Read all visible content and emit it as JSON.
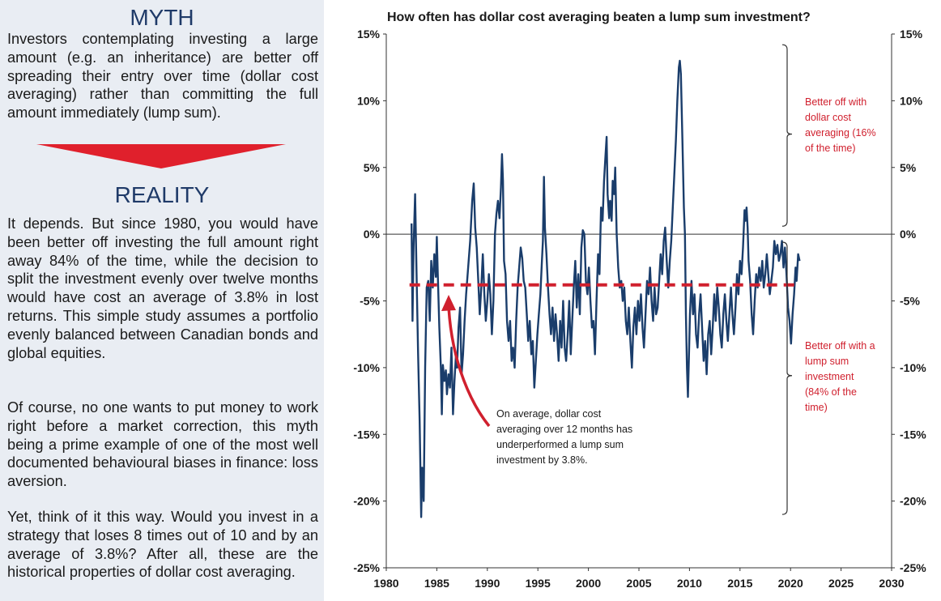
{
  "left": {
    "myth_title": "MYTH",
    "myth_text": "Investors contemplating investing a large amount (e.g. an inheritance) are better off spreading their entry over time (dollar cost averaging) rather than committing the full amount immediately (lump sum).",
    "reality_title": "REALITY",
    "reality_p1": "It depends. But since 1980, you would have been better off investing the full amount right away 84% of the time, while the decision to split the investment evenly over twelve months would have cost an average of 3.8% in lost returns. This simple study assumes a portfolio evenly balanced between Canadian bonds and global equities.",
    "reality_p2": "Of course, no one wants to put money to work right before a market correction, this myth being a prime example of one of the most well documented behavioural biases in finance: loss aversion.",
    "reality_p3": "Yet, think of it this way. Would you invest in a strategy that loses 8 times out of 10 and by an average of 3.8%? After all, these are the historical properties of dollar cost averaging.",
    "colors": {
      "heading": "#1f3a68",
      "arrow": "#e0202c",
      "panel_bg": "#e9edf3"
    }
  },
  "chart_data": {
    "type": "line",
    "title": "How often has dollar cost averaging beaten a lump sum investment?",
    "xlim": [
      1980,
      2030
    ],
    "ylim": [
      -25,
      15
    ],
    "x_ticks": [
      1980,
      1985,
      1990,
      1995,
      2000,
      2005,
      2010,
      2015,
      2020,
      2025,
      2030
    ],
    "y_ticks": [
      15,
      10,
      5,
      0,
      -5,
      -10,
      -15,
      -20,
      -25
    ],
    "y_tick_labels": [
      "15%",
      "10%",
      "5%",
      "0%",
      "-5%",
      "-10%",
      "-15%",
      "-20%",
      "-25%"
    ],
    "series": [
      {
        "color": "#1a3d6b",
        "points": [
          [
            1982.5,
            0.8
          ],
          [
            1982.6,
            -6.5
          ],
          [
            1982.7,
            -1
          ],
          [
            1982.85,
            3.0
          ],
          [
            1983.0,
            -3
          ],
          [
            1983.15,
            -9
          ],
          [
            1983.3,
            -14
          ],
          [
            1983.45,
            -21.2
          ],
          [
            1983.55,
            -17.5
          ],
          [
            1983.7,
            -20
          ],
          [
            1983.85,
            -10
          ],
          [
            1984.0,
            -4
          ],
          [
            1984.15,
            -3.5
          ],
          [
            1984.3,
            -6.5
          ],
          [
            1984.45,
            -2
          ],
          [
            1984.6,
            -4
          ],
          [
            1984.75,
            -1.5
          ],
          [
            1984.9,
            -3.2
          ],
          [
            1985.0,
            -0.2
          ],
          [
            1985.1,
            -3
          ],
          [
            1985.25,
            -7
          ],
          [
            1985.4,
            -10
          ],
          [
            1985.5,
            -13.5
          ],
          [
            1985.6,
            -9.8
          ],
          [
            1985.75,
            -11
          ],
          [
            1985.9,
            -10.2
          ],
          [
            1986.0,
            -12
          ],
          [
            1986.15,
            -10.5
          ],
          [
            1986.3,
            -11.5
          ],
          [
            1986.45,
            -8.5
          ],
          [
            1986.6,
            -13.5
          ],
          [
            1986.75,
            -11
          ],
          [
            1986.9,
            -9
          ],
          [
            1987.0,
            -10
          ],
          [
            1987.15,
            -7
          ],
          [
            1987.3,
            -5.5
          ],
          [
            1987.45,
            -10.5
          ],
          [
            1987.6,
            -9
          ],
          [
            1987.75,
            -6.5
          ],
          [
            1987.9,
            -4.5
          ],
          [
            1988.1,
            -2.5
          ],
          [
            1988.3,
            -0.5
          ],
          [
            1988.5,
            2.5
          ],
          [
            1988.65,
            3.8
          ],
          [
            1988.8,
            0.5
          ],
          [
            1988.95,
            -1
          ],
          [
            1989.1,
            -3.5
          ],
          [
            1989.25,
            -6
          ],
          [
            1989.4,
            -4
          ],
          [
            1989.55,
            -1.5
          ],
          [
            1989.7,
            -4.5
          ],
          [
            1989.85,
            -6.5
          ],
          [
            1990.0,
            -5
          ],
          [
            1990.15,
            -3
          ],
          [
            1990.3,
            -4.5
          ],
          [
            1990.45,
            -7.5
          ],
          [
            1990.6,
            -5
          ],
          [
            1990.75,
            0
          ],
          [
            1990.9,
            1.5
          ],
          [
            1991.05,
            2.5
          ],
          [
            1991.2,
            1.2
          ],
          [
            1991.35,
            3.5
          ],
          [
            1991.45,
            6.0
          ],
          [
            1991.55,
            4
          ],
          [
            1991.65,
            -2
          ],
          [
            1991.8,
            -3
          ],
          [
            1991.95,
            -6.5
          ],
          [
            1992.1,
            -8
          ],
          [
            1992.25,
            -6.5
          ],
          [
            1992.4,
            -9.5
          ],
          [
            1992.55,
            -8.5
          ],
          [
            1992.7,
            -10
          ],
          [
            1992.85,
            -6.5
          ],
          [
            1993.0,
            -4
          ],
          [
            1993.15,
            -2.5
          ],
          [
            1993.3,
            -1
          ],
          [
            1993.45,
            -1.8
          ],
          [
            1993.6,
            -3.5
          ],
          [
            1993.75,
            -4
          ],
          [
            1993.9,
            -6
          ],
          [
            1994.05,
            -8
          ],
          [
            1994.2,
            -6.5
          ],
          [
            1994.35,
            -9
          ],
          [
            1994.5,
            -8
          ],
          [
            1994.65,
            -11.5
          ],
          [
            1994.8,
            -9.5
          ],
          [
            1994.95,
            -7.5
          ],
          [
            1995.1,
            -6
          ],
          [
            1995.25,
            -4.5
          ],
          [
            1995.4,
            -2
          ],
          [
            1995.5,
            -0.5
          ],
          [
            1995.6,
            4.3
          ],
          [
            1995.7,
            0.5
          ],
          [
            1995.85,
            -1.5
          ],
          [
            1996.0,
            -4
          ],
          [
            1996.15,
            -6
          ],
          [
            1996.3,
            -7.5
          ],
          [
            1996.45,
            -5.5
          ],
          [
            1996.6,
            -8
          ],
          [
            1996.75,
            -6
          ],
          [
            1996.9,
            -7.5
          ],
          [
            1997.05,
            -9.5
          ],
          [
            1997.2,
            -6.5
          ],
          [
            1997.35,
            -8.5
          ],
          [
            1997.5,
            -5
          ],
          [
            1997.65,
            -8.5
          ],
          [
            1997.8,
            -9.5
          ],
          [
            1997.95,
            -7.5
          ],
          [
            1998.1,
            -5
          ],
          [
            1998.25,
            -9
          ],
          [
            1998.4,
            -6.5
          ],
          [
            1998.55,
            -4
          ],
          [
            1998.7,
            -2
          ],
          [
            1998.85,
            -5.5
          ],
          [
            1999.0,
            -3
          ],
          [
            1999.15,
            -6
          ],
          [
            1999.3,
            -1
          ],
          [
            1999.45,
            0.3
          ],
          [
            1999.6,
            0
          ],
          [
            1999.75,
            -3.5
          ],
          [
            1999.9,
            -4.5
          ],
          [
            2000.05,
            -2.5
          ],
          [
            2000.2,
            -5
          ],
          [
            2000.35,
            -7
          ],
          [
            2000.5,
            -6.5
          ],
          [
            2000.65,
            -9
          ],
          [
            2000.8,
            -5
          ],
          [
            2000.95,
            -1.5
          ],
          [
            2001.1,
            -3
          ],
          [
            2001.25,
            2
          ],
          [
            2001.4,
            1
          ],
          [
            2001.55,
            4
          ],
          [
            2001.7,
            6
          ],
          [
            2001.8,
            7.3
          ],
          [
            2001.9,
            3
          ],
          [
            2002.05,
            1.2
          ],
          [
            2002.15,
            2.5
          ],
          [
            2002.3,
            1
          ],
          [
            2002.4,
            4
          ],
          [
            2002.55,
            3
          ],
          [
            2002.65,
            5
          ],
          [
            2002.8,
            0
          ],
          [
            2002.95,
            -2.5
          ],
          [
            2003.1,
            -4
          ],
          [
            2003.25,
            -3.5
          ],
          [
            2003.4,
            -5
          ],
          [
            2003.55,
            -4
          ],
          [
            2003.7,
            -6.5
          ],
          [
            2003.85,
            -7.5
          ],
          [
            2004.0,
            -5.5
          ],
          [
            2004.15,
            -8
          ],
          [
            2004.3,
            -10
          ],
          [
            2004.45,
            -7
          ],
          [
            2004.6,
            -5.5
          ],
          [
            2004.75,
            -7.5
          ],
          [
            2004.9,
            -5
          ],
          [
            2005.05,
            -6.5
          ],
          [
            2005.2,
            -4.5
          ],
          [
            2005.35,
            -7
          ],
          [
            2005.5,
            -8.5
          ],
          [
            2005.65,
            -6
          ],
          [
            2005.8,
            -3.5
          ],
          [
            2005.95,
            -4.5
          ],
          [
            2006.1,
            -2.5
          ],
          [
            2006.25,
            -5
          ],
          [
            2006.4,
            -6.5
          ],
          [
            2006.55,
            -4
          ],
          [
            2006.7,
            -6
          ],
          [
            2006.85,
            -5.5
          ],
          [
            2007.0,
            -3.5
          ],
          [
            2007.15,
            -1.5
          ],
          [
            2007.3,
            -3
          ],
          [
            2007.45,
            -0.5
          ],
          [
            2007.6,
            0.5
          ],
          [
            2007.75,
            -2
          ],
          [
            2007.9,
            -4
          ],
          [
            2008.05,
            -2
          ],
          [
            2008.2,
            -0.5
          ],
          [
            2008.35,
            2
          ],
          [
            2008.5,
            4.5
          ],
          [
            2008.65,
            7
          ],
          [
            2008.8,
            10
          ],
          [
            2008.95,
            12.5
          ],
          [
            2009.05,
            13
          ],
          [
            2009.15,
            12
          ],
          [
            2009.3,
            7
          ],
          [
            2009.45,
            2
          ],
          [
            2009.55,
            0
          ],
          [
            2009.65,
            -6
          ],
          [
            2009.75,
            -10
          ],
          [
            2009.85,
            -12.2
          ],
          [
            2009.95,
            -9
          ],
          [
            2010.05,
            -6
          ],
          [
            2010.2,
            -3.5
          ],
          [
            2010.35,
            -6
          ],
          [
            2010.5,
            -4.5
          ],
          [
            2010.65,
            -7.5
          ],
          [
            2010.8,
            -8.5
          ],
          [
            2010.95,
            -6
          ],
          [
            2011.1,
            -4.5
          ],
          [
            2011.25,
            -7
          ],
          [
            2011.4,
            -9.5
          ],
          [
            2011.55,
            -8
          ],
          [
            2011.7,
            -10.5
          ],
          [
            2011.85,
            -7.5
          ],
          [
            2012.0,
            -6.5
          ],
          [
            2012.15,
            -9
          ],
          [
            2012.3,
            -7
          ],
          [
            2012.45,
            -4.5
          ],
          [
            2012.6,
            -6.5
          ],
          [
            2012.75,
            -4
          ],
          [
            2012.9,
            -5.5
          ],
          [
            2013.05,
            -7.5
          ],
          [
            2013.2,
            -8.5
          ],
          [
            2013.35,
            -6
          ],
          [
            2013.5,
            -4.5
          ],
          [
            2013.65,
            -6.5
          ],
          [
            2013.8,
            -8
          ],
          [
            2013.95,
            -6
          ],
          [
            2014.1,
            -4
          ],
          [
            2014.25,
            -6
          ],
          [
            2014.4,
            -7.5
          ],
          [
            2014.55,
            -5.5
          ],
          [
            2014.7,
            -3
          ],
          [
            2014.85,
            -4.5
          ],
          [
            2015.0,
            -2
          ],
          [
            2015.15,
            -3
          ],
          [
            2015.3,
            -1
          ],
          [
            2015.45,
            1.8
          ],
          [
            2015.55,
            1
          ],
          [
            2015.65,
            2
          ],
          [
            2015.75,
            0.5
          ],
          [
            2015.85,
            -2
          ],
          [
            2016.0,
            -3.5
          ],
          [
            2016.15,
            -6
          ],
          [
            2016.3,
            -7.5
          ],
          [
            2016.45,
            -5
          ],
          [
            2016.6,
            -3
          ],
          [
            2016.75,
            -4
          ],
          [
            2016.9,
            -2.5
          ],
          [
            2017.05,
            -3.5
          ],
          [
            2017.2,
            -2
          ],
          [
            2017.35,
            -4
          ],
          [
            2017.5,
            -3
          ],
          [
            2017.65,
            -1.5
          ],
          [
            2017.8,
            -3
          ],
          [
            2017.95,
            -4.5
          ],
          [
            2018.1,
            -3.5
          ],
          [
            2018.25,
            -2.5
          ],
          [
            2018.4,
            -0.5
          ],
          [
            2018.55,
            -1.5
          ],
          [
            2018.7,
            -0.8
          ],
          [
            2018.85,
            -2
          ],
          [
            2019.0,
            -1.5
          ],
          [
            2019.15,
            -0.5
          ],
          [
            2019.3,
            -2.5
          ],
          [
            2019.45,
            -1
          ],
          [
            2019.6,
            -3
          ],
          [
            2019.75,
            -5.5
          ],
          [
            2019.9,
            -6.5
          ],
          [
            2020.05,
            -8.2
          ],
          [
            2020.2,
            -6
          ],
          [
            2020.35,
            -4.5
          ],
          [
            2020.5,
            -2.5
          ],
          [
            2020.6,
            -3.5
          ],
          [
            2020.75,
            -1.5
          ],
          [
            2020.9,
            -2
          ]
        ]
      }
    ],
    "average_line": {
      "value": -3.8,
      "x_start": 1982.3,
      "x_end": 2020.8,
      "color": "#d0202e"
    },
    "annotations": {
      "upper_bracket_label": [
        "Better off with",
        "dollar cost",
        "averaging (16%",
        "of the time)"
      ],
      "lower_bracket_label": [
        "Better off with a",
        "lump sum",
        "investment",
        "(84% of the",
        "time)"
      ],
      "callout_text": [
        "On average, dollar cost",
        "averaging over 12 months has",
        "underperformed a lump sum",
        "investment by 3.8%."
      ],
      "callout_arrow_color": "#d0202e"
    },
    "grid": false,
    "axes": {
      "left": true,
      "right": true
    }
  }
}
